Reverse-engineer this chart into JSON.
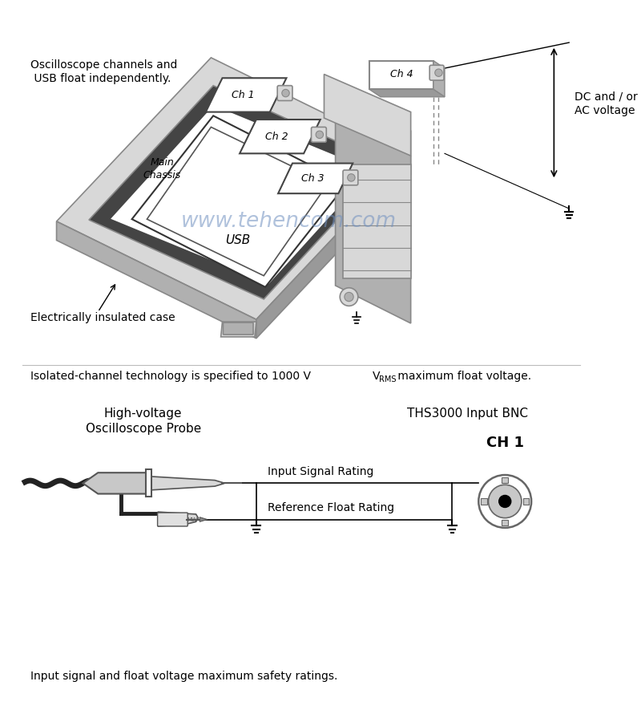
{
  "bg_color": "#ffffff",
  "text_color": "#000000",
  "gray_light": "#cccccc",
  "gray_mid": "#aaaaaa",
  "gray_dark": "#888888",
  "gray_darker": "#666666",
  "gray_face": "#d8d8d8",
  "gray_side": "#b0b0b0",
  "gray_bottom": "#999999",
  "black": "#000000",
  "white": "#ffffff",
  "watermark_color": "#7090c0",
  "top_label1": "Oscilloscope channels and",
  "top_label2": " USB float independently.",
  "elec_insulated": "Electrically insulated case",
  "dc_ac_line1": "DC and / or",
  "dc_ac_line2": "AC voltage",
  "main_chassis": "Main\nChassis",
  "usb_label": "USB",
  "isolated_text": "Isolated-channel technology is specified to 1000 V",
  "isolated_sub": "RMS",
  "isolated_rest": " maximum float voltage.",
  "hv_probe_line1": "High-voltage",
  "hv_probe_line2": "Oscilloscope Probe",
  "ths_bnc": "THS3000 Input BNC",
  "ch1_label": "CH 1",
  "input_signal": "Input Signal Rating",
  "ref_float": "Reference Float Rating",
  "bottom_text": "Input signal and float voltage maximum safety ratings.",
  "watermark": "www.tehencom.com"
}
